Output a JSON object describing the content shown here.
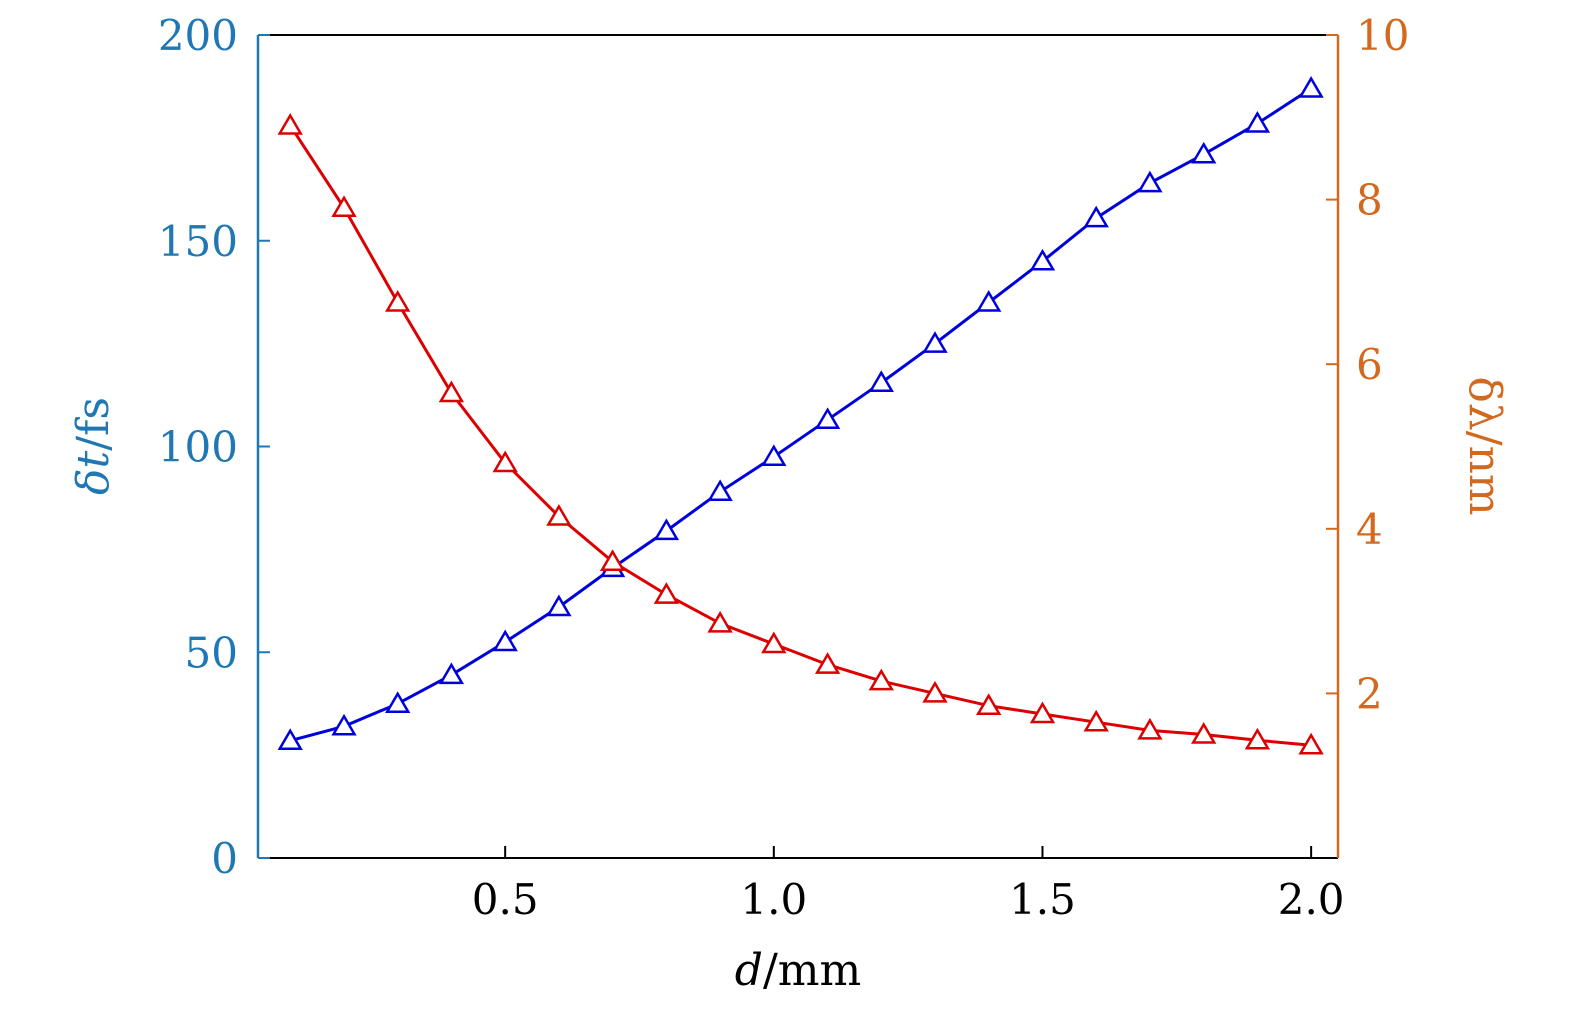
{
  "chart_data": {
    "type": "line",
    "x": [
      0.1,
      0.2,
      0.3,
      0.4,
      0.5,
      0.6,
      0.7,
      0.8,
      0.9,
      1.0,
      1.1,
      1.2,
      1.3,
      1.4,
      1.5,
      1.6,
      1.7,
      1.8,
      1.9,
      2.0
    ],
    "xlim": [
      0.04,
      2.05
    ],
    "xticks": [
      "0.5",
      "1.0",
      "1.5",
      "2.0"
    ],
    "xlabel": {
      "var": "d",
      "unit": "/mm"
    },
    "y_left": {
      "label": {
        "var": "δt",
        "unit": "/fs"
      },
      "lim": [
        0,
        200
      ],
      "ticks": [
        "0",
        "50",
        "100",
        "150",
        "200"
      ],
      "color": "#1f77b4"
    },
    "y_right": {
      "label": "δλ/nm",
      "lim": [
        0,
        10
      ],
      "ticks": [
        "2",
        "4",
        "6",
        "8",
        "10"
      ],
      "color": "#d2691e"
    },
    "series": [
      {
        "axis": "left",
        "color": "#0000dd",
        "marker": "triangle-open",
        "values": [
          28.5,
          32,
          37.5,
          44.5,
          52.5,
          61,
          70.5,
          79.5,
          89,
          97.5,
          106.5,
          115.5,
          125,
          135,
          145,
          155.5,
          164,
          171,
          178.5,
          187
        ]
      },
      {
        "axis": "right",
        "color": "#dd0000",
        "marker": "triangle-open",
        "values": [
          8.9,
          7.9,
          6.75,
          5.65,
          4.8,
          4.15,
          3.6,
          3.2,
          2.85,
          2.6,
          2.35,
          2.15,
          2.0,
          1.85,
          1.75,
          1.65,
          1.55,
          1.5,
          1.43,
          1.37
        ]
      }
    ],
    "grid": false
  }
}
